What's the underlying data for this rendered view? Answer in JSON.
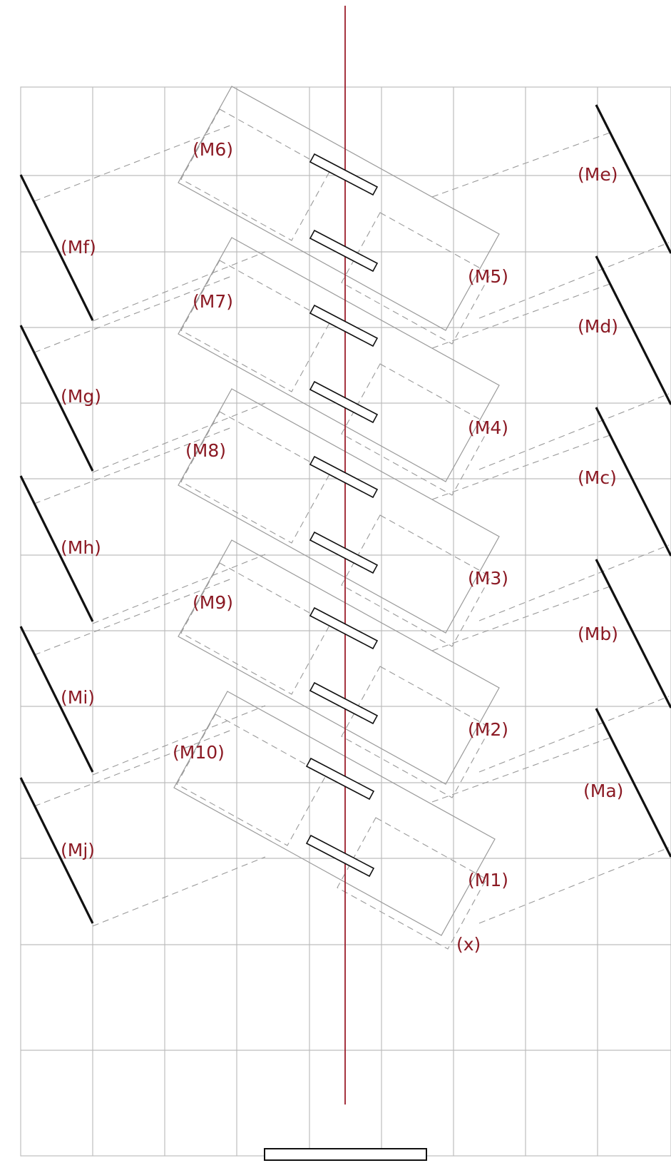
{
  "colors": {
    "label": "#8b1a24",
    "axis": "#9b1d2a",
    "grid": "#bdbdbd",
    "outline": "#9a9a9a",
    "mirror": "#111111"
  },
  "diagram": {
    "main_mirrors": [
      {
        "id": "M1",
        "text": "(M1)"
      },
      {
        "id": "M2",
        "text": "(M2)"
      },
      {
        "id": "M3",
        "text": "(M3)"
      },
      {
        "id": "M4",
        "text": "(M4)"
      },
      {
        "id": "M5",
        "text": "(M5)"
      },
      {
        "id": "M6",
        "text": "(M6)"
      },
      {
        "id": "M7",
        "text": "(M7)"
      },
      {
        "id": "M8",
        "text": "(M8)"
      },
      {
        "id": "M9",
        "text": "(M9)"
      },
      {
        "id": "M10",
        "text": "(M10)"
      }
    ],
    "right_mirrors": [
      {
        "id": "Ma",
        "text": "(Ma)"
      },
      {
        "id": "Mb",
        "text": "(Mb)"
      },
      {
        "id": "Mc",
        "text": "(Mc)"
      },
      {
        "id": "Md",
        "text": "(Md)"
      },
      {
        "id": "Me",
        "text": "(Me)"
      }
    ],
    "left_mirrors": [
      {
        "id": "Mf",
        "text": "(Mf)"
      },
      {
        "id": "Mg",
        "text": "(Mg)"
      },
      {
        "id": "Mh",
        "text": "(Mh)"
      },
      {
        "id": "Mi",
        "text": "(Mi)"
      },
      {
        "id": "Mj",
        "text": "(Mj)"
      }
    ],
    "origin_label": "(x)"
  }
}
